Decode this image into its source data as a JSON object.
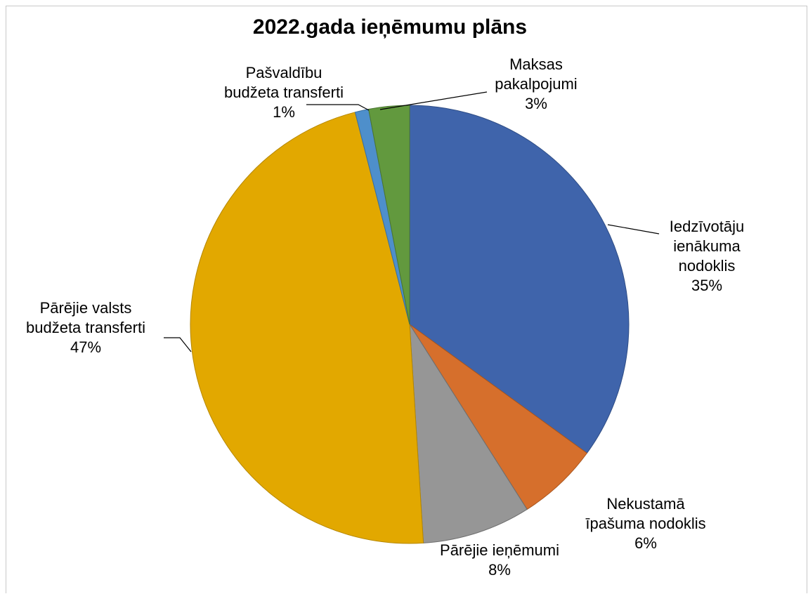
{
  "chart_data": {
    "type": "pie",
    "title": "2022.gada ieņēmumu plāns",
    "slices": [
      {
        "label_lines": [
          "Iedzīvotāju",
          "ienākuma",
          "nodoklis"
        ],
        "percent_label": "35%",
        "value": 35,
        "color": "#3F64AB",
        "stroke": "#2f4d85"
      },
      {
        "label_lines": [
          "Nekustamā",
          "īpašuma nodoklis"
        ],
        "percent_label": "6%",
        "value": 6,
        "color": "#D66F2C",
        "stroke": "#a8561f"
      },
      {
        "label_lines": [
          "Pārējie ieņēmumi"
        ],
        "percent_label": "8%",
        "value": 8,
        "color": "#969696",
        "stroke": "#6e6e6e"
      },
      {
        "label_lines": [
          "Pārējie valsts",
          "budžeta transferti"
        ],
        "percent_label": "47%",
        "value": 47,
        "color": "#E2A800",
        "stroke": "#b58700"
      },
      {
        "label_lines": [
          "Pašvaldību",
          "budžeta transferti"
        ],
        "percent_label": "1%",
        "value": 1,
        "color": "#4E8FCB",
        "stroke": "#3a6f9f"
      },
      {
        "label_lines": [
          "Maksas",
          "pakalpojumi"
        ],
        "percent_label": "3%",
        "value": 3,
        "color": "#62993E",
        "stroke": "#4a7530"
      }
    ]
  }
}
